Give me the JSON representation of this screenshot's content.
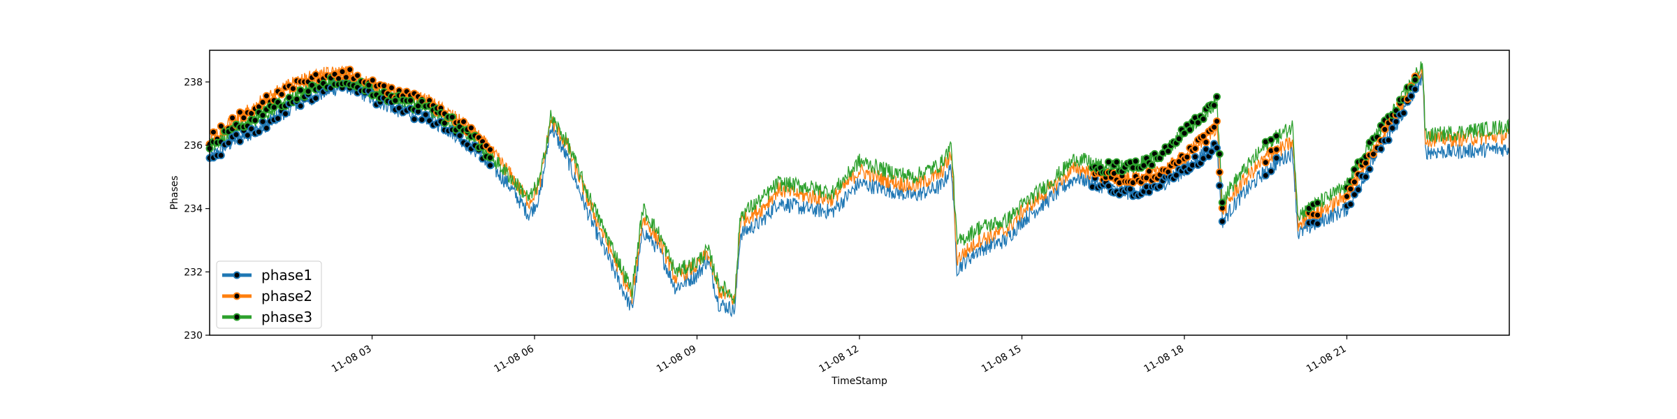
{
  "chart_data": {
    "type": "line",
    "xlabel": "TimeStamp",
    "ylabel": "Phases",
    "x_range": [
      "11-08 00:00",
      "11-09 00:00"
    ],
    "ylim": [
      230,
      239
    ],
    "y_ticks": [
      230,
      232,
      234,
      236,
      238
    ],
    "x_ticks": [
      {
        "label": "11-08 03",
        "hour": 3
      },
      {
        "label": "11-08 06",
        "hour": 6
      },
      {
        "label": "11-08 09",
        "hour": 9
      },
      {
        "label": "11-08 12",
        "hour": 12
      },
      {
        "label": "11-08 15",
        "hour": 15
      },
      {
        "label": "11-08 18",
        "hour": 18
      },
      {
        "label": "11-08 21",
        "hour": 21
      }
    ],
    "grid": false,
    "legend_position": "lower-left",
    "series": [
      {
        "name": "phase1",
        "color": "#1f77b4",
        "points": [
          [
            0.0,
            235.6
          ],
          [
            0.5,
            236.2
          ],
          [
            1.0,
            236.6
          ],
          [
            1.5,
            237.2
          ],
          [
            2.0,
            237.6
          ],
          [
            2.5,
            237.9
          ],
          [
            3.0,
            237.5
          ],
          [
            3.5,
            237.1
          ],
          [
            4.0,
            236.9
          ],
          [
            4.5,
            236.4
          ],
          [
            5.0,
            235.7
          ],
          [
            5.5,
            234.8
          ],
          [
            5.9,
            233.8
          ],
          [
            6.1,
            234.4
          ],
          [
            6.3,
            236.6
          ],
          [
            6.6,
            235.6
          ],
          [
            7.0,
            233.8
          ],
          [
            7.4,
            232.3
          ],
          [
            7.8,
            230.8
          ],
          [
            8.0,
            233.3
          ],
          [
            8.3,
            232.7
          ],
          [
            8.6,
            231.5
          ],
          [
            9.0,
            231.9
          ],
          [
            9.2,
            232.4
          ],
          [
            9.4,
            231.0
          ],
          [
            9.7,
            230.8
          ],
          [
            9.8,
            233.2
          ],
          [
            10.2,
            233.6
          ],
          [
            10.5,
            234.2
          ],
          [
            11.0,
            234.0
          ],
          [
            11.5,
            233.9
          ],
          [
            12.0,
            234.8
          ],
          [
            12.5,
            234.6
          ],
          [
            13.0,
            234.4
          ],
          [
            13.5,
            234.7
          ],
          [
            13.7,
            235.3
          ],
          [
            13.8,
            232.1
          ],
          [
            14.2,
            232.7
          ],
          [
            14.7,
            233.0
          ],
          [
            15.0,
            233.6
          ],
          [
            15.5,
            234.3
          ],
          [
            16.0,
            235.0
          ],
          [
            16.5,
            234.7
          ],
          [
            17.0,
            234.5
          ],
          [
            17.5,
            234.7
          ],
          [
            18.0,
            235.2
          ],
          [
            18.6,
            236.0
          ],
          [
            18.7,
            233.6
          ],
          [
            19.0,
            234.3
          ],
          [
            19.5,
            235.2
          ],
          [
            20.0,
            235.8
          ],
          [
            20.1,
            233.2
          ],
          [
            20.5,
            233.6
          ],
          [
            21.0,
            234.0
          ],
          [
            21.5,
            235.6
          ],
          [
            22.0,
            236.9
          ],
          [
            22.4,
            238.2
          ],
          [
            22.45,
            235.8
          ],
          [
            23.0,
            235.8
          ],
          [
            24.0,
            235.9
          ]
        ]
      },
      {
        "name": "phase2",
        "color": "#ff7f0e",
        "points": [
          [
            0.0,
            236.2
          ],
          [
            0.5,
            236.8
          ],
          [
            1.0,
            237.4
          ],
          [
            1.5,
            237.9
          ],
          [
            2.0,
            238.2
          ],
          [
            2.5,
            238.3
          ],
          [
            3.0,
            237.9
          ],
          [
            3.5,
            237.6
          ],
          [
            4.0,
            237.4
          ],
          [
            4.5,
            236.9
          ],
          [
            5.0,
            236.2
          ],
          [
            5.5,
            235.2
          ],
          [
            5.9,
            234.2
          ],
          [
            6.1,
            234.8
          ],
          [
            6.3,
            236.8
          ],
          [
            6.6,
            236.0
          ],
          [
            7.0,
            234.2
          ],
          [
            7.4,
            232.7
          ],
          [
            7.8,
            231.2
          ],
          [
            8.0,
            233.7
          ],
          [
            8.3,
            233.0
          ],
          [
            8.6,
            231.8
          ],
          [
            9.0,
            232.2
          ],
          [
            9.2,
            232.6
          ],
          [
            9.4,
            231.4
          ],
          [
            9.7,
            231.1
          ],
          [
            9.8,
            233.6
          ],
          [
            10.2,
            234.0
          ],
          [
            10.5,
            234.6
          ],
          [
            11.0,
            234.4
          ],
          [
            11.5,
            234.3
          ],
          [
            12.0,
            235.2
          ],
          [
            12.5,
            234.9
          ],
          [
            13.0,
            234.7
          ],
          [
            13.5,
            235.1
          ],
          [
            13.7,
            235.7
          ],
          [
            13.8,
            232.4
          ],
          [
            14.2,
            233.0
          ],
          [
            14.7,
            233.3
          ],
          [
            15.0,
            233.9
          ],
          [
            15.5,
            234.6
          ],
          [
            16.0,
            235.3
          ],
          [
            16.5,
            235.0
          ],
          [
            17.0,
            234.9
          ],
          [
            17.5,
            235.1
          ],
          [
            18.0,
            235.6
          ],
          [
            18.6,
            236.6
          ],
          [
            18.7,
            233.9
          ],
          [
            19.0,
            234.7
          ],
          [
            19.5,
            235.6
          ],
          [
            20.0,
            236.1
          ],
          [
            20.1,
            233.5
          ],
          [
            20.5,
            233.9
          ],
          [
            21.0,
            234.4
          ],
          [
            21.5,
            235.9
          ],
          [
            22.0,
            237.2
          ],
          [
            22.4,
            238.5
          ],
          [
            22.45,
            236.2
          ],
          [
            23.0,
            236.2
          ],
          [
            24.0,
            236.3
          ]
        ]
      },
      {
        "name": "phase3",
        "color": "#2ca02c",
        "points": [
          [
            0.0,
            236.0
          ],
          [
            0.5,
            236.5
          ],
          [
            1.0,
            237.0
          ],
          [
            1.5,
            237.5
          ],
          [
            2.0,
            237.9
          ],
          [
            2.5,
            238.1
          ],
          [
            3.0,
            237.7
          ],
          [
            3.5,
            237.4
          ],
          [
            4.0,
            237.2
          ],
          [
            4.5,
            236.7
          ],
          [
            5.0,
            236.0
          ],
          [
            5.5,
            235.1
          ],
          [
            5.9,
            234.3
          ],
          [
            6.1,
            234.9
          ],
          [
            6.3,
            236.9
          ],
          [
            6.6,
            236.1
          ],
          [
            7.0,
            234.4
          ],
          [
            7.4,
            232.9
          ],
          [
            7.8,
            231.4
          ],
          [
            8.0,
            234.0
          ],
          [
            8.3,
            233.2
          ],
          [
            8.6,
            232.0
          ],
          [
            9.0,
            232.3
          ],
          [
            9.2,
            232.7
          ],
          [
            9.4,
            231.6
          ],
          [
            9.7,
            231.2
          ],
          [
            9.8,
            233.8
          ],
          [
            10.2,
            234.3
          ],
          [
            10.5,
            234.8
          ],
          [
            11.0,
            234.7
          ],
          [
            11.5,
            234.5
          ],
          [
            12.0,
            235.5
          ],
          [
            12.5,
            235.2
          ],
          [
            13.0,
            235.0
          ],
          [
            13.5,
            235.4
          ],
          [
            13.7,
            236.0
          ],
          [
            13.8,
            232.9
          ],
          [
            14.2,
            233.4
          ],
          [
            14.7,
            233.6
          ],
          [
            15.0,
            234.1
          ],
          [
            15.5,
            234.8
          ],
          [
            16.0,
            235.6
          ],
          [
            16.5,
            235.3
          ],
          [
            17.0,
            235.3
          ],
          [
            17.5,
            235.6
          ],
          [
            18.0,
            236.4
          ],
          [
            18.6,
            237.4
          ],
          [
            18.7,
            234.3
          ],
          [
            19.0,
            235.0
          ],
          [
            19.5,
            236.0
          ],
          [
            20.0,
            236.6
          ],
          [
            20.1,
            233.8
          ],
          [
            20.5,
            234.2
          ],
          [
            21.0,
            234.7
          ],
          [
            21.5,
            236.2
          ],
          [
            22.0,
            237.4
          ],
          [
            22.4,
            238.6
          ],
          [
            22.45,
            236.3
          ],
          [
            23.0,
            236.4
          ],
          [
            24.0,
            236.6
          ]
        ]
      }
    ],
    "marked_ranges": [
      {
        "from": 0.0,
        "to": 5.2,
        "step": 0.07
      },
      {
        "from": 16.3,
        "to": 18.7,
        "step": 0.05
      },
      {
        "from": 19.5,
        "to": 19.7,
        "step": 0.1
      },
      {
        "from": 20.3,
        "to": 20.5,
        "step": 0.08
      },
      {
        "from": 21.0,
        "to": 22.3,
        "step": 0.07
      }
    ],
    "marker_colors": {
      "fill": "#000000"
    }
  }
}
